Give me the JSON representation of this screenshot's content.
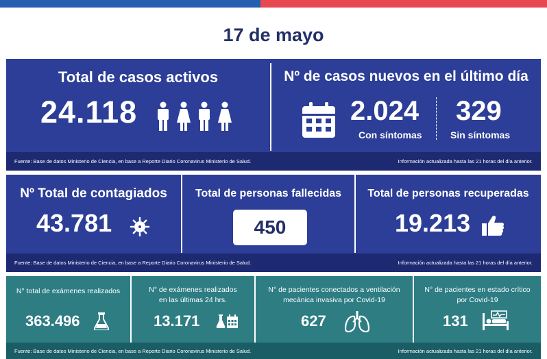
{
  "header": {
    "date": "17 de mayo"
  },
  "colors": {
    "primary_blue": "#2c3e97",
    "dark_blue": "#1d2971",
    "teal": "#2d7d83",
    "dark_teal": "#1b5d65",
    "accent_red": "#e8484f"
  },
  "active_cases": {
    "title": "Total de casos activos",
    "value": "24.118",
    "icons": [
      "male-icon",
      "female-icon",
      "male-icon",
      "female-icon"
    ]
  },
  "new_cases": {
    "title": "Nº de casos nuevos en el último día",
    "symptomatic_value": "2.024",
    "symptomatic_label": "Con síntomas",
    "asymptomatic_value": "329",
    "asymptomatic_label": "Sin síntomas",
    "icon": "calendar-icon"
  },
  "footer_source": "Fuente: Base de datos Ministerio de Ciencia, en base a Reporte Diario Coronavirus Ministerio de Salud.",
  "footer_update": "Información actualizada hasta las 21 horas  del día anterior.",
  "totals": {
    "infected_title": "Nº Total de contagiados",
    "infected_value": "43.781",
    "deceased_title": "Total de personas fallecidas",
    "deceased_value": "450",
    "recovered_title": "Total de personas recuperadas",
    "recovered_value": "19.213"
  },
  "exams": {
    "total_title": "N° total de exámenes realizados",
    "total_value": "363.496",
    "last24_title_line1": "N° de exámenes realizados",
    "last24_title_line2": "en las últimas 24 hrs.",
    "last24_value": "13.171",
    "ventilator_title_line1": "N° de pacientes conectados a ventilación",
    "ventilator_title_line2": "mecánica invasiva por Covid-19",
    "ventilator_value": "627",
    "critical_title_line1": "N° de pacientes en estado crítico",
    "critical_title_line2": "por Covid-19",
    "critical_value": "131"
  }
}
